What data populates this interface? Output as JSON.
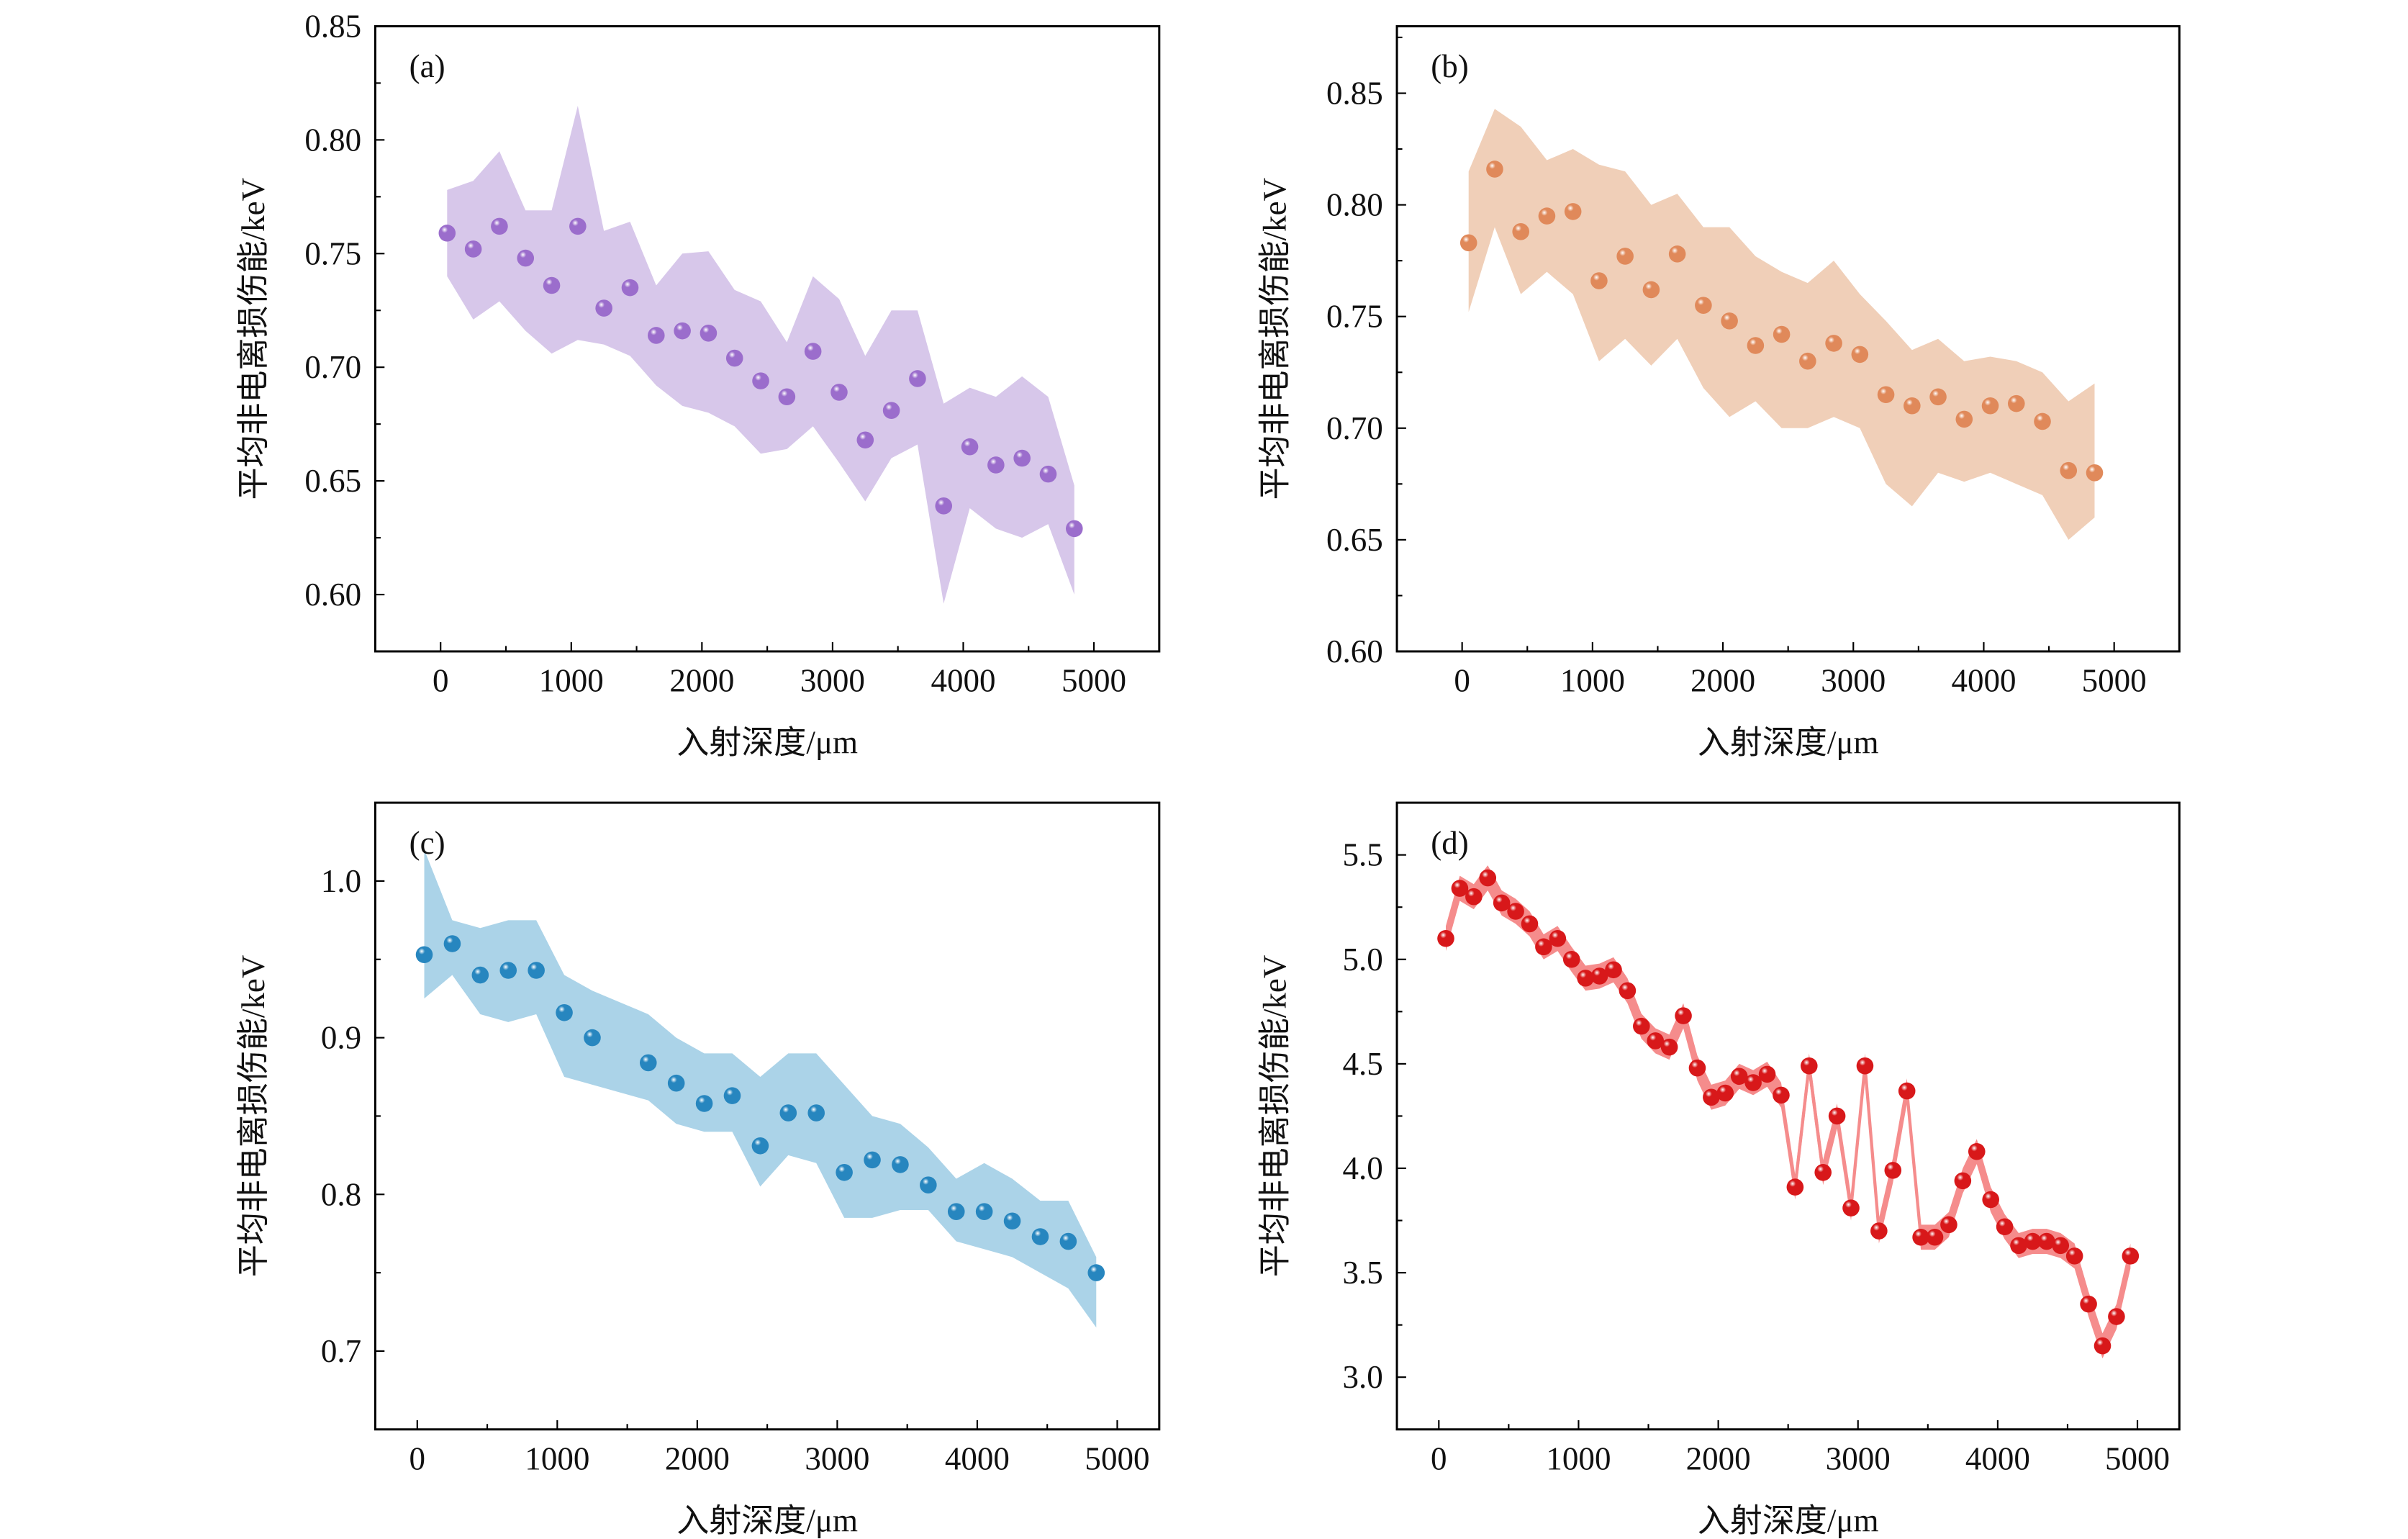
{
  "chart_data": [
    {
      "panel_label": "(a)",
      "type": "scatter",
      "xlabel": "入射深度/μm",
      "ylabel": "平均非电离损伤能/keV",
      "xlim": [
        -500,
        5500
      ],
      "ylim": [
        0.575,
        0.85
      ],
      "xticks": [
        0,
        1000,
        2000,
        3000,
        4000,
        5000
      ],
      "yticks": [
        0.6,
        0.65,
        0.7,
        0.75,
        0.8,
        0.85
      ],
      "ytick_decimals": 2,
      "grid": false,
      "color": "#9b6dcc",
      "band_color": "#d7c7ea",
      "x": [
        50,
        250,
        450,
        650,
        850,
        1050,
        1250,
        1450,
        1650,
        1850,
        2050,
        2250,
        2450,
        2650,
        2850,
        3050,
        3250,
        3450,
        3650,
        3850,
        4050,
        4250,
        4450,
        4650,
        4850
      ],
      "y": [
        0.759,
        0.752,
        0.762,
        0.748,
        0.736,
        0.762,
        0.726,
        0.735,
        0.714,
        0.716,
        0.715,
        0.704,
        0.694,
        0.687,
        0.707,
        0.689,
        0.668,
        0.681,
        0.695,
        0.639,
        0.665,
        0.657,
        0.66,
        0.653,
        0.629
      ],
      "upper": [
        0.778,
        0.782,
        0.795,
        0.769,
        0.769,
        0.815,
        0.76,
        0.764,
        0.736,
        0.75,
        0.751,
        0.734,
        0.729,
        0.711,
        0.74,
        0.73,
        0.705,
        0.725,
        0.725,
        0.684,
        0.691,
        0.687,
        0.696,
        0.687,
        0.648
      ],
      "lower": [
        0.74,
        0.721,
        0.729,
        0.716,
        0.706,
        0.712,
        0.71,
        0.705,
        0.692,
        0.683,
        0.68,
        0.674,
        0.662,
        0.664,
        0.674,
        0.658,
        0.641,
        0.66,
        0.666,
        0.596,
        0.638,
        0.629,
        0.625,
        0.631,
        0.6
      ]
    },
    {
      "panel_label": "(b)",
      "type": "scatter",
      "xlabel": "入射深度/μm",
      "ylabel": "平均非电离损伤能/keV",
      "xlim": [
        -500,
        5500
      ],
      "ylim": [
        0.6,
        0.88
      ],
      "xticks": [
        0,
        1000,
        2000,
        3000,
        4000,
        5000
      ],
      "yticks": [
        0.6,
        0.65,
        0.7,
        0.75,
        0.8,
        0.85
      ],
      "ytick_decimals": 2,
      "grid": false,
      "color": "#e0895a",
      "band_color": "#f0cfb8",
      "x": [
        50,
        250,
        450,
        650,
        850,
        1050,
        1250,
        1450,
        1650,
        1850,
        2050,
        2250,
        2450,
        2650,
        2850,
        3050,
        3250,
        3450,
        3650,
        3850,
        4050,
        4250,
        4450,
        4650,
        4850
      ],
      "y": [
        0.783,
        0.816,
        0.788,
        0.795,
        0.797,
        0.766,
        0.777,
        0.762,
        0.778,
        0.755,
        0.748,
        0.737,
        0.742,
        0.73,
        0.738,
        0.733,
        0.715,
        0.71,
        0.714,
        0.704,
        0.71,
        0.711,
        0.703,
        0.681,
        0.68
      ],
      "upper": [
        0.815,
        0.843,
        0.835,
        0.82,
        0.825,
        0.818,
        0.815,
        0.8,
        0.805,
        0.79,
        0.79,
        0.777,
        0.77,
        0.765,
        0.775,
        0.76,
        0.748,
        0.735,
        0.74,
        0.73,
        0.732,
        0.73,
        0.725,
        0.712,
        0.72
      ],
      "lower": [
        0.752,
        0.79,
        0.76,
        0.77,
        0.76,
        0.73,
        0.74,
        0.728,
        0.74,
        0.718,
        0.705,
        0.712,
        0.7,
        0.7,
        0.705,
        0.7,
        0.675,
        0.665,
        0.68,
        0.676,
        0.68,
        0.675,
        0.67,
        0.65,
        0.66
      ]
    },
    {
      "panel_label": "(c)",
      "type": "scatter",
      "xlabel": "入射深度/μm",
      "ylabel": "平均非电离损伤能/keV",
      "xlim": [
        -300,
        5300
      ],
      "ylim": [
        0.65,
        1.05
      ],
      "xticks": [
        0,
        1000,
        2000,
        3000,
        4000,
        5000
      ],
      "yticks": [
        0.7,
        0.8,
        0.9,
        1.0
      ],
      "ytick_decimals": 1,
      "grid": false,
      "color": "#2786bf",
      "band_color": "#abd3e8",
      "x": [
        50,
        250,
        450,
        650,
        850,
        1050,
        1250,
        1650,
        1850,
        2050,
        2250,
        2450,
        2650,
        2850,
        3050,
        3250,
        3450,
        3650,
        3850,
        4050,
        4250,
        4450,
        4650,
        4850
      ],
      "y": [
        0.953,
        0.96,
        0.94,
        0.943,
        0.943,
        0.916,
        0.9,
        0.884,
        0.871,
        0.858,
        0.863,
        0.831,
        0.852,
        0.852,
        0.814,
        0.822,
        0.819,
        0.806,
        0.789,
        0.789,
        0.783,
        0.773,
        0.77,
        0.75
      ],
      "upper": [
        1.02,
        0.975,
        0.97,
        0.975,
        0.975,
        0.94,
        0.93,
        0.915,
        0.9,
        0.89,
        0.89,
        0.875,
        0.89,
        0.89,
        0.87,
        0.85,
        0.845,
        0.83,
        0.81,
        0.82,
        0.81,
        0.796,
        0.796,
        0.76
      ],
      "lower": [
        0.925,
        0.94,
        0.915,
        0.91,
        0.915,
        0.875,
        0.87,
        0.86,
        0.845,
        0.84,
        0.84,
        0.805,
        0.825,
        0.82,
        0.785,
        0.785,
        0.79,
        0.79,
        0.77,
        0.765,
        0.76,
        0.75,
        0.74,
        0.715
      ]
    },
    {
      "panel_label": "(d)",
      "type": "line",
      "xlabel": "入射深度/μm",
      "ylabel": "平均非电离损伤能/keV",
      "xlim": [
        -300,
        5300
      ],
      "ylim": [
        2.75,
        5.75
      ],
      "xticks": [
        0,
        1000,
        2000,
        3000,
        4000,
        5000
      ],
      "yticks": [
        3.0,
        3.5,
        4.0,
        4.5,
        5.0,
        5.5
      ],
      "ytick_decimals": 1,
      "grid": false,
      "color": "#d8181a",
      "band_color": "#f58c8c",
      "x": [
        50,
        150,
        250,
        350,
        450,
        550,
        650,
        750,
        850,
        950,
        1050,
        1150,
        1250,
        1350,
        1450,
        1550,
        1650,
        1750,
        1850,
        1950,
        2050,
        2150,
        2250,
        2350,
        2450,
        2550,
        2650,
        2750,
        2850,
        2950,
        3050,
        3150,
        3250,
        3350,
        3450,
        3550,
        3650,
        3750,
        3850,
        3950,
        4050,
        4150,
        4250,
        4350,
        4450,
        4550,
        4650,
        4750,
        4850,
        4950
      ],
      "y": [
        5.1,
        5.34,
        5.3,
        5.39,
        5.27,
        5.23,
        5.17,
        5.06,
        5.1,
        5.0,
        4.91,
        4.92,
        4.95,
        4.85,
        4.68,
        4.61,
        4.58,
        4.73,
        4.48,
        4.34,
        4.36,
        4.44,
        4.41,
        4.45,
        4.35,
        3.91,
        4.49,
        3.98,
        4.25,
        3.81,
        4.49,
        3.7,
        3.99,
        4.37,
        3.67,
        3.67,
        3.73,
        3.94,
        4.08,
        3.85,
        3.72,
        3.63,
        3.65,
        3.65,
        3.63,
        3.58,
        3.35,
        3.15,
        3.29,
        3.58
      ],
      "band_halfwidth": 0.06
    }
  ]
}
